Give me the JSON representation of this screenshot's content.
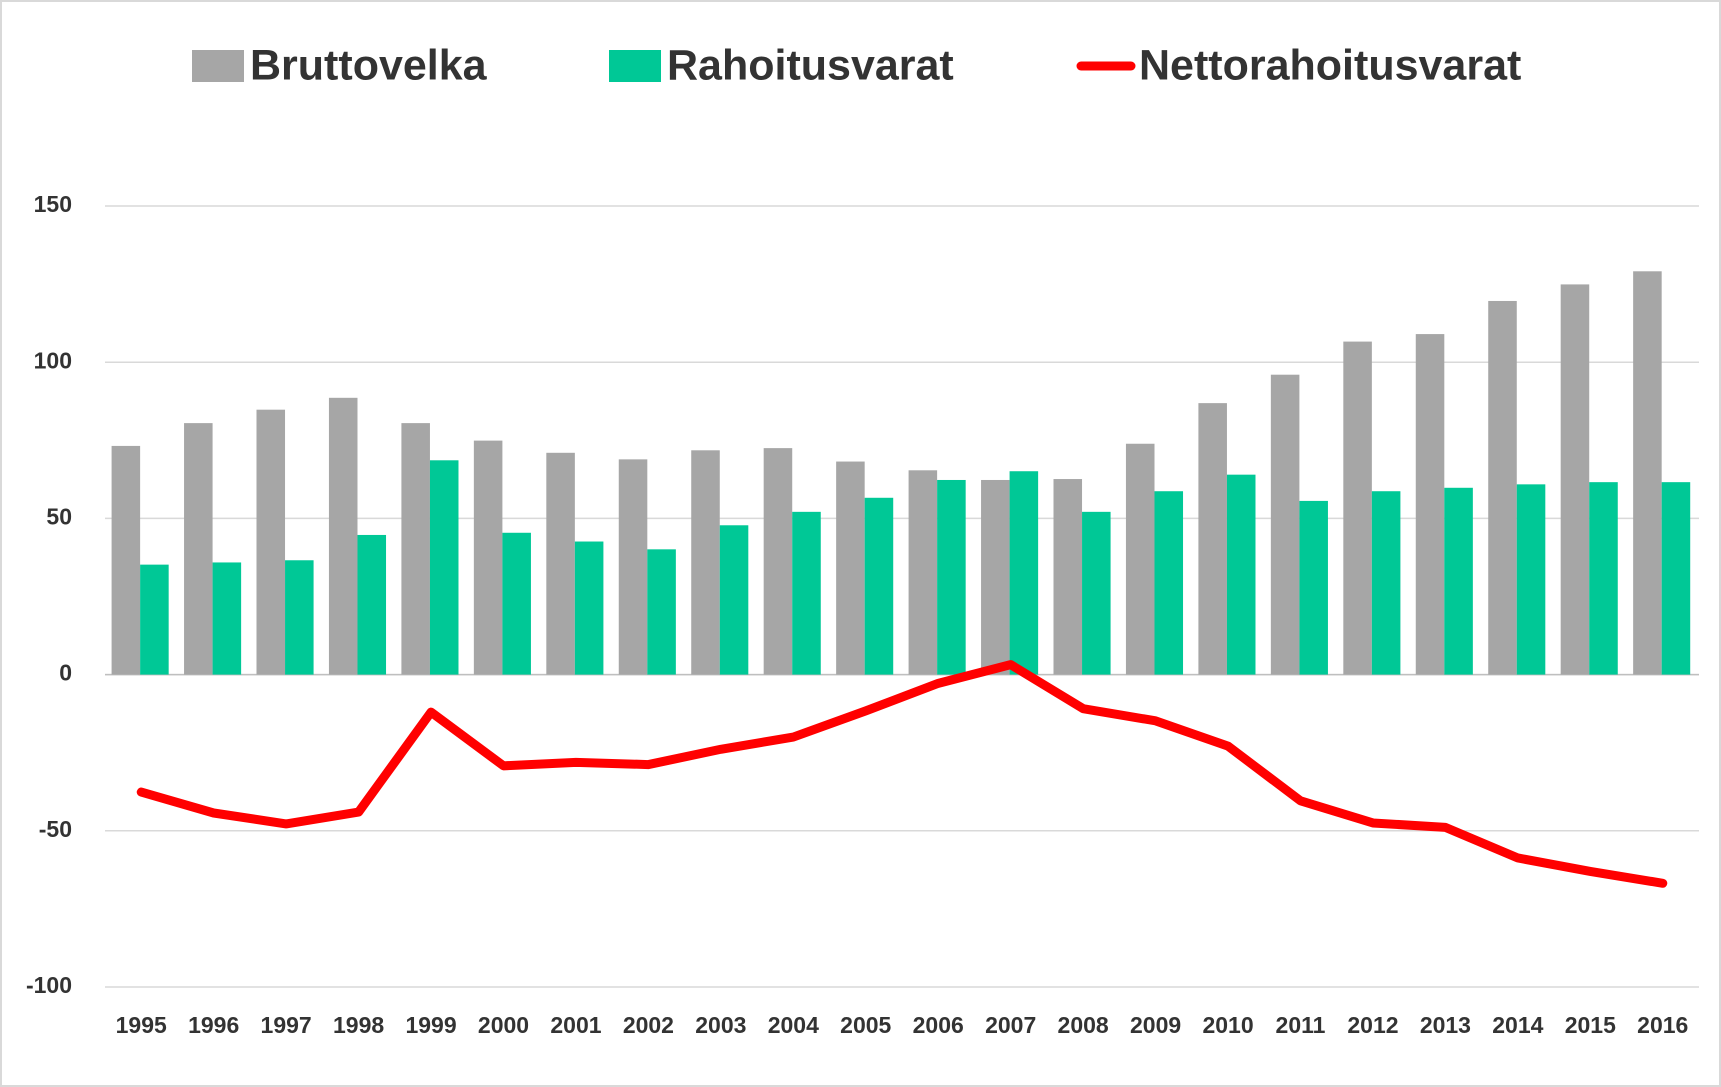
{
  "chart_data": {
    "type": "bar",
    "categories": [
      "1995",
      "1996",
      "1997",
      "1998",
      "1999",
      "2000",
      "2001",
      "2002",
      "2003",
      "2004",
      "2005",
      "2006",
      "2007",
      "2008",
      "2009",
      "2010",
      "2011",
      "2012",
      "2013",
      "2014",
      "2015",
      "2016"
    ],
    "series": [
      {
        "name": "Bruttovelka",
        "type": "bar",
        "color": "#a6a6a6",
        "values": [
          73.2,
          80.5,
          84.8,
          88.6,
          80.5,
          74.9,
          71,
          68.9,
          71.8,
          72.5,
          68.2,
          65.4,
          62.3,
          62.6,
          73.9,
          86.9,
          96,
          106.6,
          109,
          119.6,
          124.9,
          129.1
        ]
      },
      {
        "name": "Rahoitusvarat",
        "type": "bar",
        "color": "#00c896",
        "values": [
          35.2,
          35.9,
          36.6,
          44.7,
          68.6,
          45.4,
          42.6,
          40.1,
          47.8,
          52.1,
          56.6,
          62.3,
          65.1,
          52.1,
          58.7,
          64,
          55.6,
          58.7,
          59.8,
          60.9,
          61.6,
          61.6
        ]
      },
      {
        "name": "Nettorahoitusvarat",
        "type": "line",
        "color": "#ff0000",
        "values": [
          -37.6,
          -44.3,
          -47.8,
          -44,
          -12,
          -29.2,
          -28.1,
          -28.8,
          -23.9,
          -20,
          -11.6,
          -2.8,
          3.2,
          -10.9,
          -14.8,
          -22.9,
          -40.4,
          -47.5,
          -48.9,
          -58.7,
          -63,
          -66.8
        ]
      }
    ],
    "ylim": [
      -100,
      150
    ],
    "yticks": [
      -100,
      -50,
      0,
      50,
      100,
      150
    ],
    "grid": true
  }
}
